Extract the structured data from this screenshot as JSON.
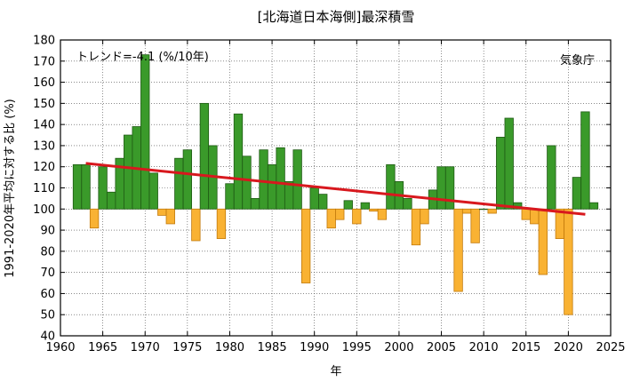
{
  "chart_data": {
    "type": "bar",
    "title": "[北海道日本海側]最深積雪",
    "xlabel": "年",
    "ylabel": "1991-2020年平均に対する比 (%)",
    "trend_label": "トレンド=-4.1 (%/10年)",
    "source_label": "気象庁",
    "xlim": [
      1960,
      2025
    ],
    "ylim": [
      40,
      180
    ],
    "baseline": 100,
    "x_ticks": [
      "1960",
      "1965",
      "1970",
      "1975",
      "1980",
      "1985",
      "1990",
      "1995",
      "2000",
      "2005",
      "2010",
      "2015",
      "2020",
      "2025"
    ],
    "y_ticks": [
      "40",
      "50",
      "60",
      "70",
      "80",
      "90",
      "100",
      "110",
      "120",
      "130",
      "140",
      "150",
      "160",
      "170",
      "180"
    ],
    "years": [
      1962,
      1963,
      1964,
      1965,
      1966,
      1967,
      1968,
      1969,
      1970,
      1971,
      1972,
      1973,
      1974,
      1975,
      1976,
      1977,
      1978,
      1979,
      1980,
      1981,
      1982,
      1983,
      1984,
      1985,
      1986,
      1987,
      1988,
      1989,
      1990,
      1991,
      1992,
      1993,
      1994,
      1995,
      1996,
      1997,
      1998,
      1999,
      2000,
      2001,
      2002,
      2003,
      2004,
      2005,
      2006,
      2007,
      2008,
      2009,
      2010,
      2011,
      2012,
      2013,
      2014,
      2015,
      2016,
      2017,
      2018,
      2019,
      2020,
      2021,
      2022,
      2023
    ],
    "values": [
      121,
      121,
      91,
      120,
      108,
      124,
      135,
      139,
      173,
      117,
      97,
      93,
      124,
      128,
      85,
      150,
      130,
      86,
      112,
      145,
      125,
      105,
      128,
      121,
      129,
      113,
      128,
      65,
      110,
      107,
      91,
      95,
      104,
      93,
      103,
      99,
      95,
      121,
      113,
      105,
      83,
      93,
      109,
      120,
      120,
      61,
      98,
      84,
      100,
      98,
      134,
      143,
      103,
      95,
      93,
      69,
      130,
      86,
      50,
      115,
      146,
      103
    ],
    "trend": {
      "x": [
        1963,
        2022
      ],
      "y": [
        121.6,
        97.5
      ]
    },
    "colors": {
      "above": "#3a9a2a",
      "above_edge": "#1f5a14",
      "below": "#f9b233",
      "below_edge": "#c27a0c",
      "trend": "#d8181e",
      "grid": "#444444"
    }
  }
}
